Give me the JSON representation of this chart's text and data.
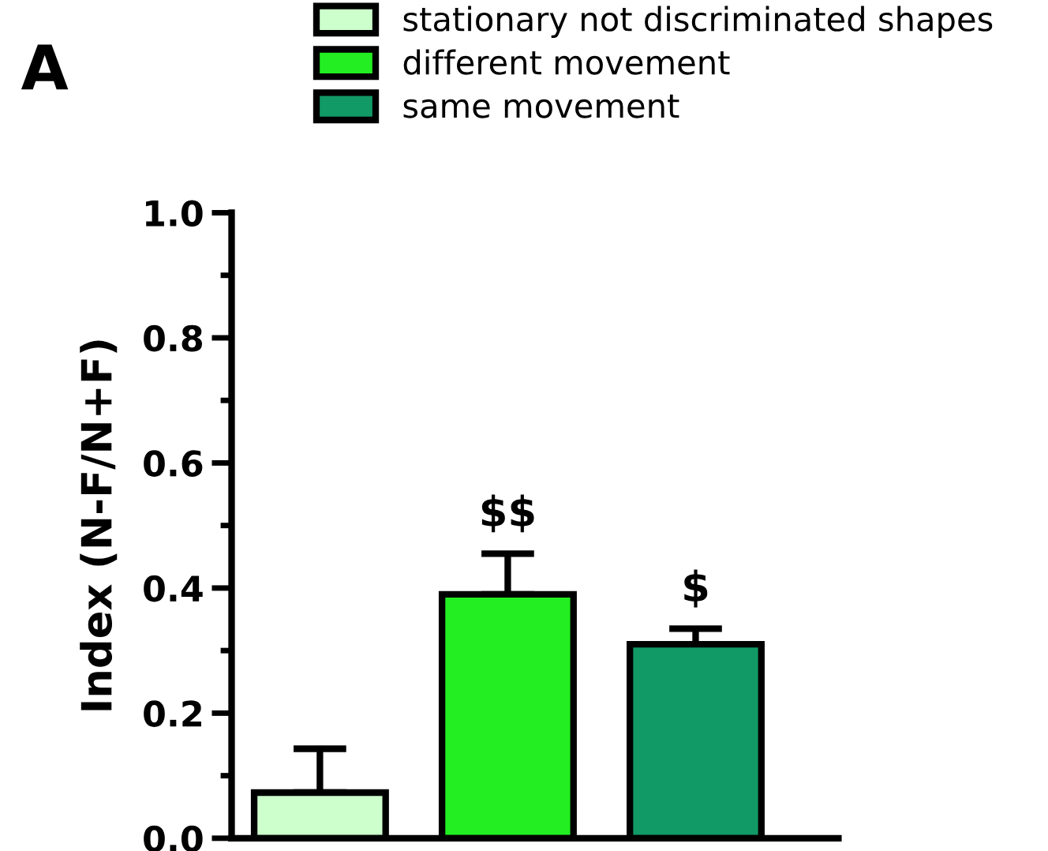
{
  "chart_data": {
    "type": "bar",
    "categories": [
      null,
      null,
      null
    ],
    "series": [
      {
        "name": "stationary not discriminated shapes",
        "color": "#ccffcc",
        "values": [
          0.073,
          null,
          null
        ],
        "errors": [
          [
            0.073,
            0.143
          ],
          null,
          null
        ]
      },
      {
        "name": "different movement",
        "color": "#22ee22",
        "values": [
          null,
          0.39,
          null
        ],
        "errors": [
          null,
          [
            0.39,
            0.455
          ],
          null
        ]
      },
      {
        "name": "same movement",
        "color": "#119966",
        "values": [
          null,
          null,
          0.31
        ],
        "errors": [
          null,
          null,
          [
            0.31,
            0.335
          ]
        ]
      }
    ],
    "ylabel": "Index (N-F/N+F)",
    "ylim": [
      0,
      1.0
    ],
    "yticks": [
      {
        "value": 0,
        "label": "0.0"
      },
      {
        "value": 0.2,
        "label": "0.2"
      },
      {
        "value": 0.4,
        "label": "0.4"
      },
      {
        "value": 0.6,
        "label": "0.6"
      },
      {
        "value": 0.8,
        "label": "0.8"
      },
      {
        "value": 1.0,
        "label": "1.0"
      }
    ],
    "annotations": [
      "A",
      "$$",
      "$"
    ],
    "legend": "top",
    "grid": false,
    "tick_labels": "y"
  }
}
